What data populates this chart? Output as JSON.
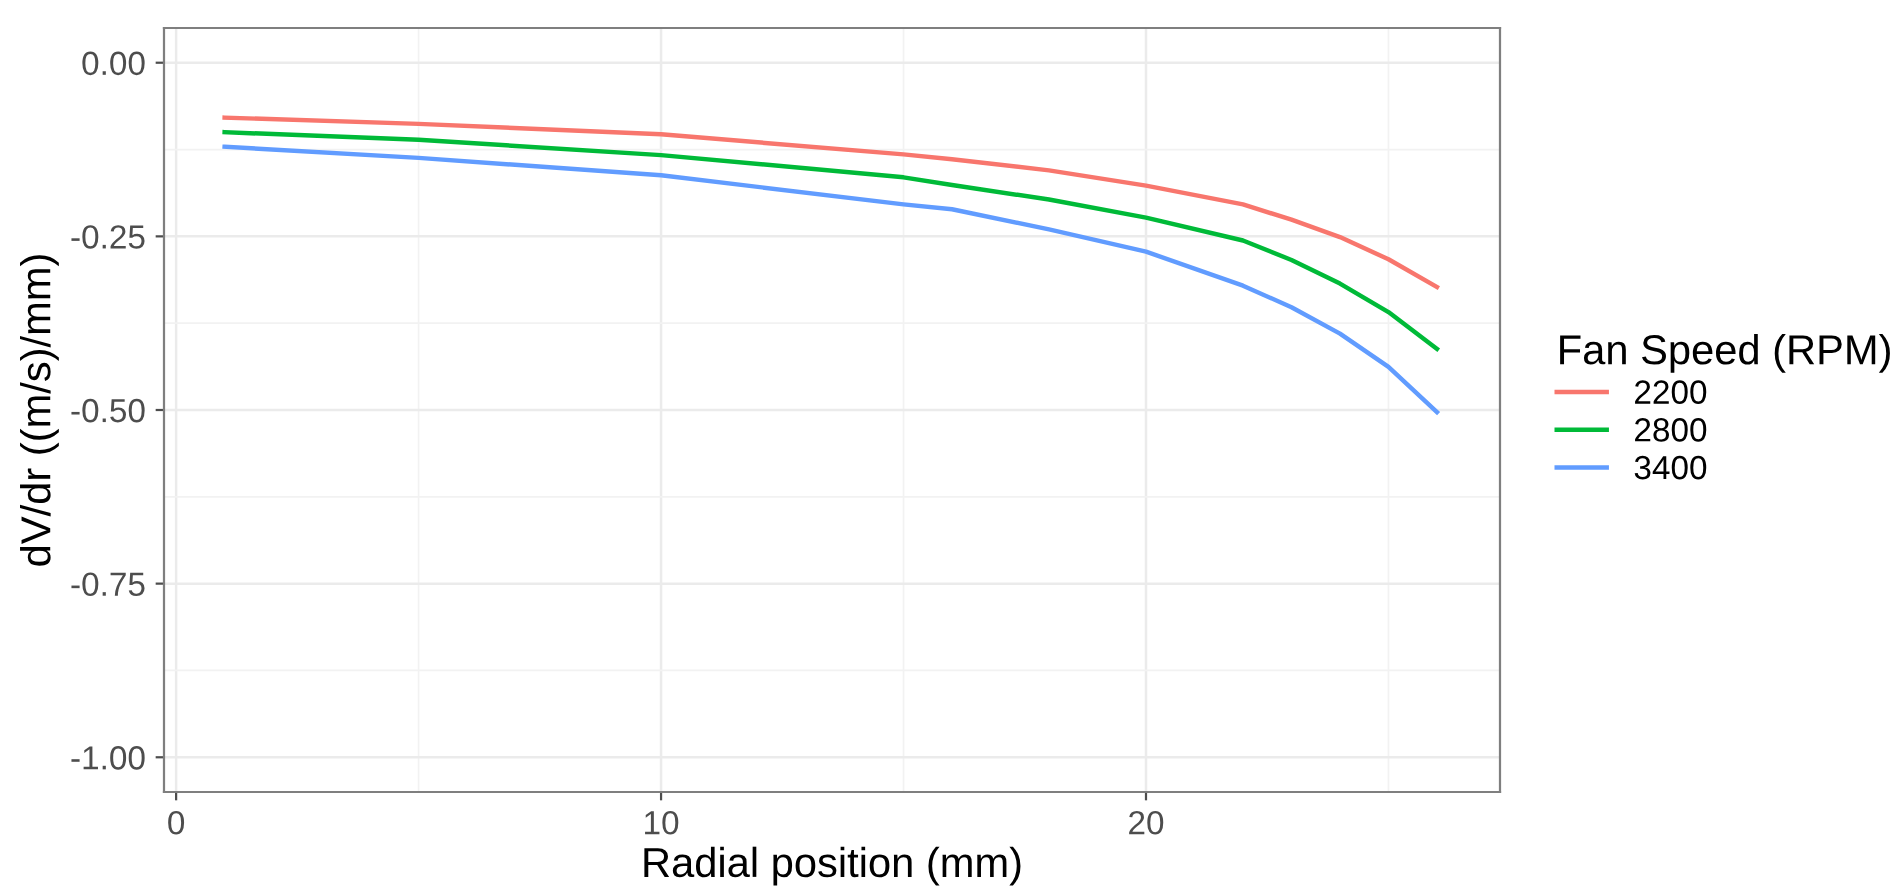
{
  "chart_data": {
    "type": "line",
    "xlabel": "Radial position (mm)",
    "ylabel": "dV/dr ((m/s)/mm)",
    "legend_title": "Fan Speed (RPM)",
    "x": [
      1,
      5,
      10,
      15,
      16,
      18,
      20,
      22,
      23,
      24,
      25,
      26
    ],
    "series": [
      {
        "name": "2200",
        "color": "#f8766d",
        "values": [
          -0.079,
          -0.088,
          -0.103,
          -0.132,
          -0.139,
          -0.155,
          -0.177,
          -0.204,
          -0.226,
          -0.251,
          -0.283,
          -0.323
        ]
      },
      {
        "name": "2800",
        "color": "#00ba38",
        "values": [
          -0.1,
          -0.111,
          -0.133,
          -0.165,
          -0.176,
          -0.197,
          -0.223,
          -0.256,
          -0.284,
          -0.318,
          -0.359,
          -0.412
        ]
      },
      {
        "name": "3400",
        "color": "#619cff",
        "values": [
          -0.121,
          -0.137,
          -0.162,
          -0.204,
          -0.211,
          -0.24,
          -0.272,
          -0.321,
          -0.352,
          -0.39,
          -0.438,
          -0.503
        ]
      }
    ],
    "xlim": [
      -0.25,
      27.3
    ],
    "ylim": [
      -1.05,
      0.05
    ],
    "xticks": [
      0,
      10,
      20
    ],
    "yticks": [
      {
        "value": 0,
        "label": "0.00"
      },
      {
        "value": -0.25,
        "label": "-0.25"
      },
      {
        "value": -0.5,
        "label": "-0.50"
      },
      {
        "value": -0.75,
        "label": "-0.75"
      },
      {
        "value": -1,
        "label": "-1.00"
      }
    ],
    "grid": true,
    "legend": "right",
    "marker": "none",
    "line_style": "solid"
  }
}
